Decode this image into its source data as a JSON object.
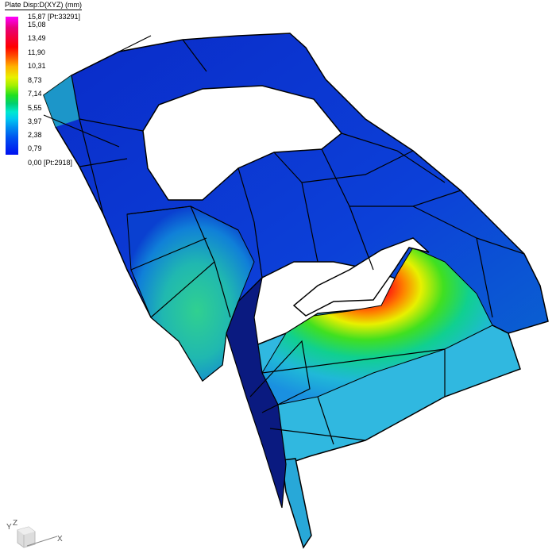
{
  "legend": {
    "title": "Plate Disp:D(XYZ) (mm)",
    "max_label": "15,87 [Pt:33291]",
    "ticks": [
      "15,08",
      "13,49",
      "11,90",
      "10,31",
      "8,73",
      "7,14",
      "5,55",
      "3,97",
      "2,38",
      "0,79"
    ],
    "min_label": "0,00 [Pt:2918]",
    "colormap": [
      "#ff00ff",
      "#ff0000",
      "#ffb000",
      "#e8f000",
      "#20e020",
      "#00e8d0",
      "#0090f0",
      "#0010f0"
    ]
  },
  "triad": {
    "x": "X",
    "y": "Y",
    "z": "Z"
  }
}
